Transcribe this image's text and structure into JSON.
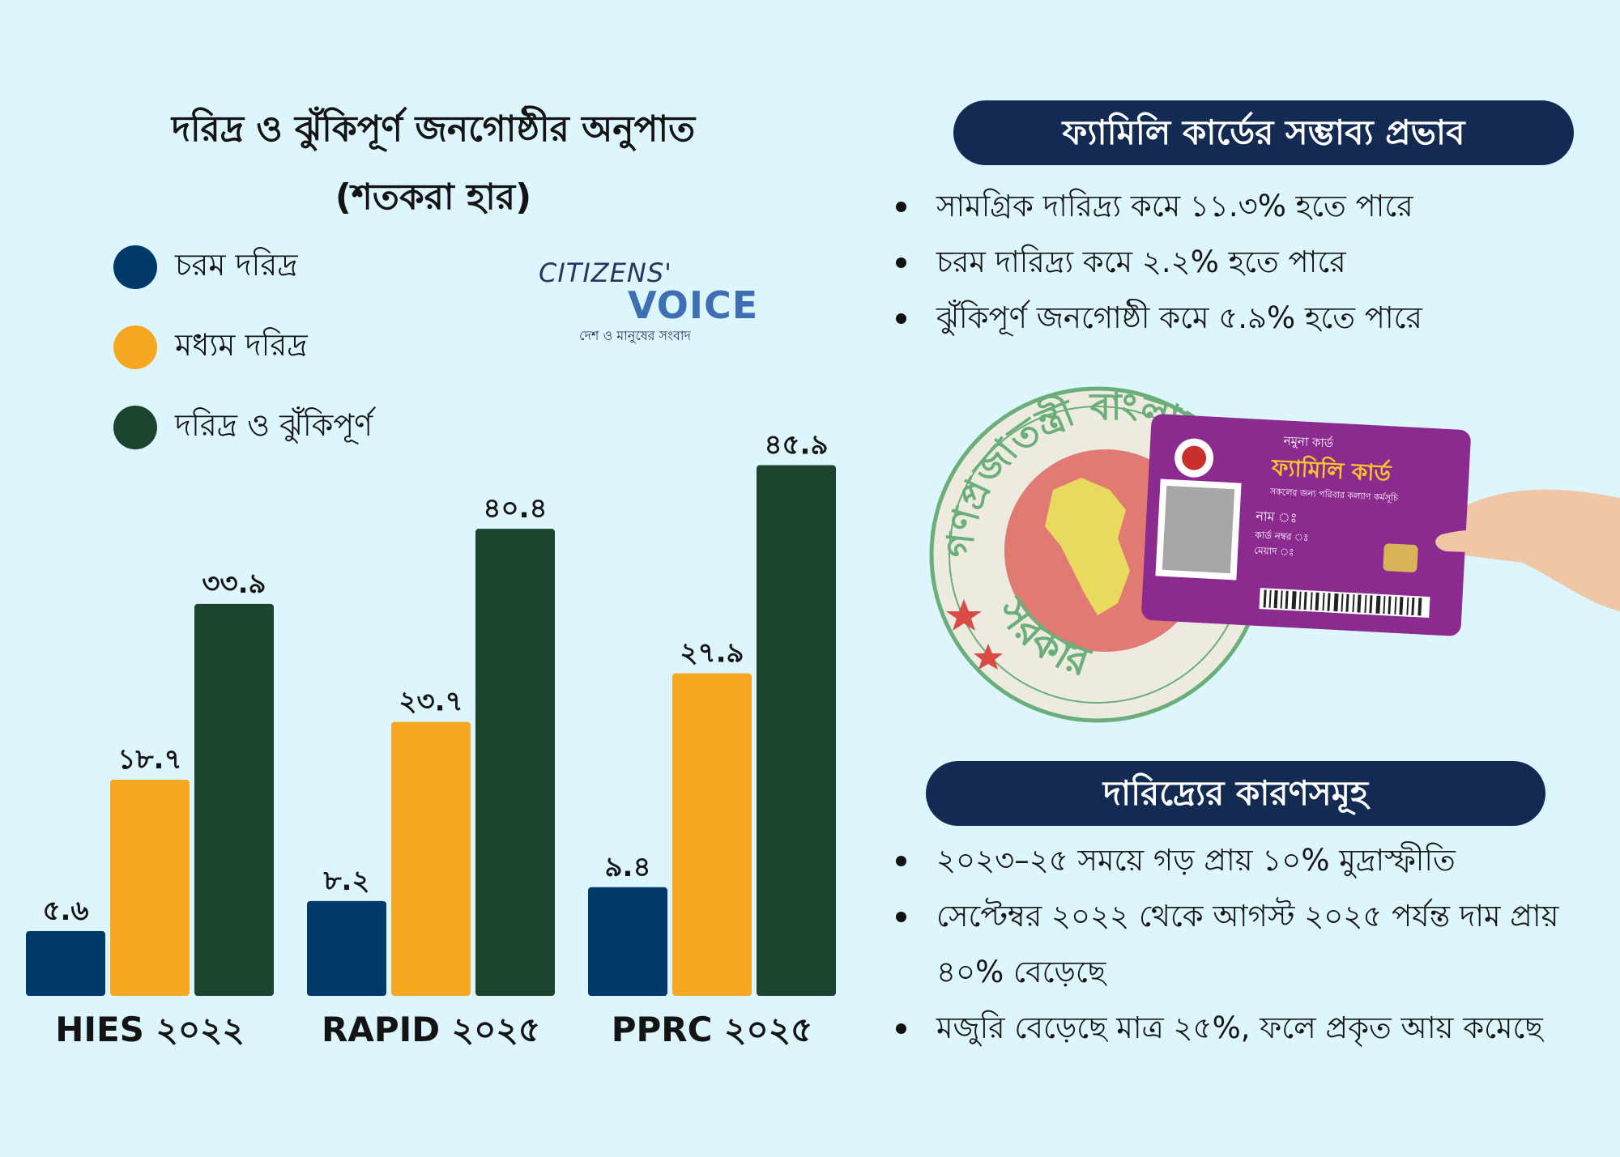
{
  "chart_data": {
    "type": "bar",
    "title": "দরিদ্র ও ঝুঁকিপূর্ণ জনগোষ্ঠীর অনুপাত",
    "subtitle": "(শতকরা হার)",
    "categories": [
      "HIES ২০২২",
      "RAPID ২০২৫",
      "PPRC ২০২৫"
    ],
    "series": [
      {
        "name": "চরম দরিদ্র",
        "color": "#003a6b",
        "values": [
          5.6,
          8.2,
          9.4
        ],
        "labels": [
          "৫.৬",
          "৮.২",
          "৯.৪"
        ]
      },
      {
        "name": "মধ্যম দরিদ্র",
        "color": "#f7a823",
        "values": [
          18.7,
          23.7,
          27.9
        ],
        "labels": [
          "১৮.৭",
          "২৩.৭",
          "২৭.৯"
        ]
      },
      {
        "name": "দরিদ্র ও ঝুঁকিপূর্ণ",
        "color": "#1b432d",
        "values": [
          33.9,
          40.4,
          45.9
        ],
        "labels": [
          "৩৩.৯",
          "৪০.৪",
          "৪৫.৯"
        ]
      }
    ],
    "ylim": [
      0,
      50
    ],
    "grid": false,
    "legend": "top-left"
  },
  "logo": {
    "line1": "CITIZENS'",
    "line2": "VOICE",
    "tagline": "দেশ ও মানুষের সংবাদ"
  },
  "impact_panel": {
    "title": "ফ্যামিলি কার্ডের সম্ভাব্য প্রভাব",
    "items": [
      "সামগ্রিক দারিদ্র্য কমে ১১.৩% হতে পারে",
      "চরম দারিদ্র্য কমে ২.২% হতে পারে",
      "ঝুঁকিপূর্ণ জনগোষ্ঠী কমে ৫.৯% হতে পারে"
    ]
  },
  "card": {
    "sample": "নমুনা কার্ড",
    "title": "ফ্যামিলি কার্ড",
    "subtitle": "সকলের জন্য পরিবার কল্যাণ কর্মসূচি",
    "name_label": "নাম ঃ",
    "number_label": "কার্ড নম্বর ঃ",
    "validity_label": "মেয়াদ ঃ"
  },
  "seal": {
    "top_text": "গণপ্রজাতন্ত্রী বাংলাদেশ",
    "bottom_text": "সরকার"
  },
  "causes_panel": {
    "title": "দারিদ্র্যের কারণসমূহ",
    "items": [
      "২০২৩–২৫ সময়ে গড় প্রায় ১০% মুদ্রাস্ফীতি",
      "সেপ্টেম্বর ২০২২ থেকে আগস্ট ২০২৫ পর্যন্ত দাম প্রায় ৪০% বেড়েছে",
      "মজুরি বেড়েছে মাত্র ২৫%, ফলে প্রকৃত আয় কমেছে"
    ]
  }
}
